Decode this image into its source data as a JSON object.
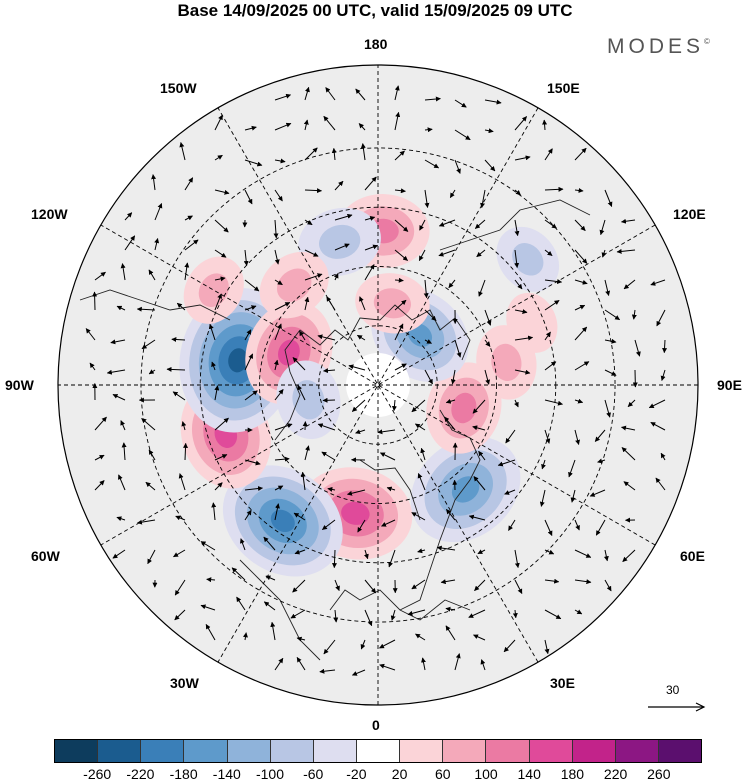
{
  "title": "Base 14/09/2025 00 UTC, valid 15/09/2025 09 UTC",
  "logo": {
    "text": "MODES",
    "mark": "©"
  },
  "longitude_labels": {
    "lon_180": "180",
    "lon_150w": "150W",
    "lon_150e": "150E",
    "lon_120w": "120W",
    "lon_120e": "120E",
    "lon_90w": "90W",
    "lon_90e": "90E",
    "lon_60w": "60W",
    "lon_60e": "60E",
    "lon_30w": "30W",
    "lon_30e": "30E",
    "lon_0": "0"
  },
  "reference_vector": {
    "label": "30"
  },
  "colorbar": {
    "colors": [
      "#0d3c5d",
      "#1b5c8f",
      "#3a7fb8",
      "#5e9acb",
      "#8fb3da",
      "#b8c6e4",
      "#dedef0",
      "#ffffff",
      "#fbd4d8",
      "#f4a9ba",
      "#eb7aa3",
      "#e04a9a",
      "#c2238a",
      "#8c1783",
      "#5b0f6e"
    ],
    "tick_labels": [
      "-260",
      "-220",
      "-180",
      "-140",
      "-100",
      "-60",
      "-20",
      "20",
      "60",
      "100",
      "140",
      "180",
      "220",
      "260"
    ]
  },
  "anomaly_field": [
    {
      "lon": -10,
      "colat": 22,
      "value": 160
    },
    {
      "lon": -35,
      "colat": 28,
      "value": -190
    },
    {
      "lon": -72,
      "colat": 27,
      "value": 150
    },
    {
      "lon": -100,
      "colat": 24,
      "value": -230
    },
    {
      "lon": -110,
      "colat": 16,
      "value": 140
    },
    {
      "lon": -78,
      "colat": 12,
      "value": -80
    },
    {
      "lon": 40,
      "colat": 23,
      "value": -170
    },
    {
      "lon": 75,
      "colat": 15,
      "value": 110
    },
    {
      "lon": 100,
      "colat": 22,
      "value": 70
    },
    {
      "lon": 140,
      "colat": 11,
      "value": -140
    },
    {
      "lon": 170,
      "colat": 14,
      "value": 70
    },
    {
      "lon": 178,
      "colat": 26,
      "value": 110
    },
    {
      "lon": -165,
      "colat": 25,
      "value": -90
    },
    {
      "lon": -140,
      "colat": 22,
      "value": 70
    },
    {
      "lon": -120,
      "colat": 32,
      "value": 60
    },
    {
      "lon": 130,
      "colat": 33,
      "value": -60
    },
    {
      "lon": 112,
      "colat": 28,
      "value": 40
    }
  ]
}
